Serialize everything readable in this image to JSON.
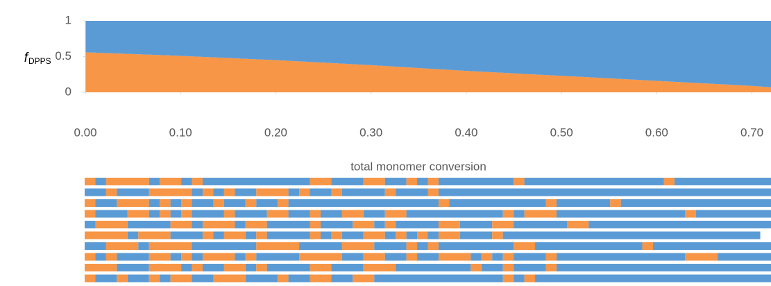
{
  "chart_data": [
    {
      "type": "area",
      "stacked": true,
      "ylabel": {
        "main": "f",
        "subscript": "DPPS"
      },
      "xlabel": "total monomer conversion",
      "x": [
        0,
        0.1,
        0.2,
        0.3,
        0.4,
        0.5,
        0.6,
        0.7,
        0.72
      ],
      "series": [
        {
          "color": "#f79646",
          "values": [
            0.56,
            0.51,
            0.45,
            0.38,
            0.3,
            0.23,
            0.16,
            0.09,
            0.07
          ]
        },
        {
          "color": "#5b9bd5",
          "values": [
            0.44,
            0.49,
            0.55,
            0.62,
            0.7,
            0.77,
            0.84,
            0.91,
            0.93
          ]
        }
      ],
      "xlim": [
        0,
        0.72
      ],
      "ylim": [
        0,
        1
      ],
      "xticks": [
        {
          "value": 0,
          "label": "0.00"
        },
        {
          "value": 0.1,
          "label": "0.10"
        },
        {
          "value": 0.2,
          "label": "0.20"
        },
        {
          "value": 0.3,
          "label": "0.30"
        },
        {
          "value": 0.4,
          "label": "0.40"
        },
        {
          "value": 0.5,
          "label": "0.50"
        },
        {
          "value": 0.6,
          "label": "0.60"
        },
        {
          "value": 0.7,
          "label": "0.70"
        }
      ],
      "yticks": [
        0,
        0.5,
        1
      ]
    },
    {
      "type": "sequence",
      "colors": [
        "#f79646",
        "#5b9bd5"
      ],
      "xlim": [
        0,
        64
      ],
      "chains": [
        {
          "start": 0,
          "runs": [
            1,
            1,
            4,
            1,
            2,
            1,
            1,
            10,
            2,
            3,
            2,
            2,
            1,
            1,
            1,
            7,
            1,
            13,
            1,
            9
          ]
        },
        {
          "start": 1,
          "runs": [
            2,
            1,
            3,
            4,
            1,
            1,
            1,
            1,
            2,
            3,
            1,
            1,
            2,
            1,
            4,
            1,
            3,
            1,
            31
          ]
        },
        {
          "start": 0,
          "runs": [
            1,
            2,
            3,
            1,
            1,
            1,
            1,
            2,
            1,
            2,
            1,
            2,
            1,
            14,
            1,
            9,
            1,
            5,
            1,
            14
          ]
        },
        {
          "start": 0,
          "runs": [
            1,
            3,
            2,
            1,
            1,
            1,
            1,
            3,
            1,
            3,
            2,
            2,
            1,
            2,
            2,
            2,
            2,
            9,
            1,
            1,
            3,
            12,
            1,
            7
          ]
        },
        {
          "start": 1,
          "runs": [
            1,
            3,
            4,
            2,
            1,
            3,
            1,
            2,
            4,
            1,
            3,
            2,
            1,
            1,
            4,
            2,
            3,
            2,
            5,
            2,
            17
          ]
        },
        {
          "start": 0,
          "runs": [
            4,
            1,
            3,
            3,
            1,
            1,
            2,
            1,
            1,
            4,
            1,
            1,
            1,
            2,
            2,
            1,
            1,
            1,
            1,
            1,
            2,
            3,
            1,
            24
          ]
        },
        {
          "start": 1,
          "runs": [
            2,
            3,
            1,
            4,
            6,
            4,
            4,
            3,
            3,
            1,
            1,
            1,
            7,
            2,
            10,
            1,
            11
          ]
        },
        {
          "start": 0,
          "runs": [
            1,
            1,
            1,
            3,
            2,
            1,
            1,
            1,
            3,
            1,
            1,
            4,
            4,
            2,
            2,
            2,
            1,
            2,
            3,
            1,
            1,
            1,
            1,
            3,
            1,
            12,
            3,
            5
          ]
        },
        {
          "start": 0,
          "runs": [
            3,
            3,
            3,
            1,
            1,
            2,
            2,
            1,
            1,
            4,
            2,
            3,
            3,
            7,
            1,
            2,
            1,
            3,
            1,
            20
          ]
        },
        {
          "start": 0,
          "runs": [
            1,
            2,
            1,
            2,
            1,
            1,
            2,
            2,
            3,
            3,
            1,
            2,
            2,
            2,
            2,
            12,
            1,
            1,
            1,
            22
          ]
        }
      ]
    }
  ]
}
